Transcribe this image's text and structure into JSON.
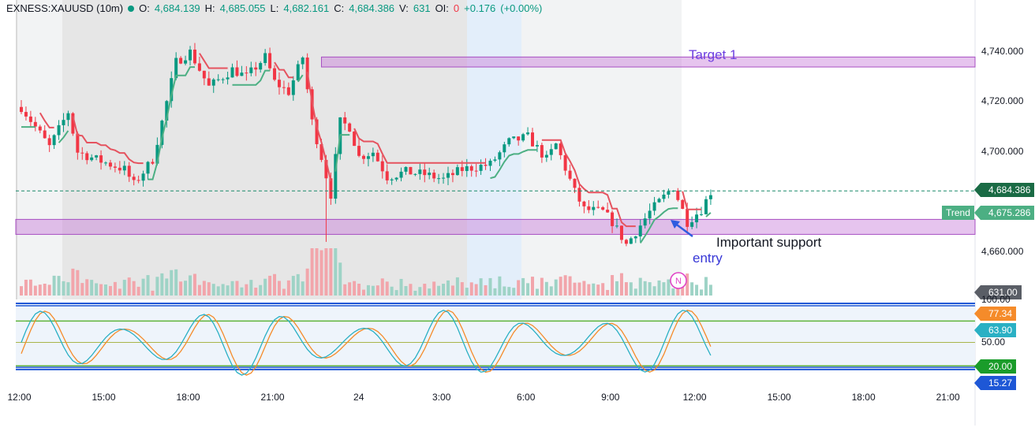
{
  "header": {
    "symbol": "EXNESS:XAUUSD (10m)",
    "o_label": "O:",
    "o": "4,684.139",
    "h_label": "H:",
    "h": "4,685.055",
    "l_label": "L:",
    "l": "4,682.161",
    "c_label": "C:",
    "c": "4,684.386",
    "v_label": "V:",
    "v": "631",
    "oi_label": "OI:",
    "oi": "0",
    "change": "+0.176",
    "change_pct": "(+0.00%)"
  },
  "colors": {
    "up": "#089981",
    "down": "#f23645",
    "zone": "#c77dd9",
    "trend_up": "#4caf83",
    "trend_down": "#e5535f",
    "stoch_k": "#2ab0c4",
    "stoch_d": "#f58b2a",
    "band": "#1e57d6"
  },
  "annotations": {
    "target": "Target 1",
    "support": "Important support",
    "entry": "entry",
    "news": "N"
  },
  "chart_data": [
    {
      "type": "candlestick",
      "title": "",
      "x_ticks": [
        "12:00",
        "15:00",
        "18:00",
        "21:00",
        "24",
        "3:00",
        "6:00",
        "9:00",
        "12:00",
        "15:00",
        "18:00",
        "21:00"
      ],
      "y_ticks": [
        "4,740.000",
        "4,720.000",
        "4,700.000",
        "4,680.000",
        "4,660.000"
      ],
      "ylim": [
        4651,
        4760
      ],
      "anchors": [
        {
          "t": "12:00",
          "v": 4718
        },
        {
          "t": "12:30",
          "v": 4710
        },
        {
          "t": "13:00",
          "v": 4702
        },
        {
          "t": "13:40",
          "v": 4716
        },
        {
          "t": "14:00",
          "v": 4700
        },
        {
          "t": "14:40",
          "v": 4697
        },
        {
          "t": "15:40",
          "v": 4693
        },
        {
          "t": "16:00",
          "v": 4687
        },
        {
          "t": "16:40",
          "v": 4697
        },
        {
          "t": "17:00",
          "v": 4712
        },
        {
          "t": "17:30",
          "v": 4736
        },
        {
          "t": "18:00",
          "v": 4740
        },
        {
          "t": "18:40",
          "v": 4726
        },
        {
          "t": "19:30",
          "v": 4733
        },
        {
          "t": "20:00",
          "v": 4730
        },
        {
          "t": "20:40",
          "v": 4738
        },
        {
          "t": "21:00",
          "v": 4728
        },
        {
          "t": "21:30",
          "v": 4724
        },
        {
          "t": "22:00",
          "v": 4738
        },
        {
          "t": "22:20",
          "v": 4712
        },
        {
          "t": "22:40",
          "v": 4698
        },
        {
          "t": "23:00",
          "v": 4683
        },
        {
          "t": "23:20",
          "v": 4712
        },
        {
          "t": "23:40",
          "v": 4710
        },
        {
          "t": "24:00",
          "v": 4698
        },
        {
          "t": "24:30",
          "v": 4700
        },
        {
          "t": "25:00",
          "v": 4690
        },
        {
          "t": "25:40",
          "v": 4692
        },
        {
          "t": "26:20",
          "v": 4691
        },
        {
          "t": "27:00",
          "v": 4689
        },
        {
          "t": "27:40",
          "v": 4693
        },
        {
          "t": "28:40",
          "v": 4695
        },
        {
          "t": "29:20",
          "v": 4704
        },
        {
          "t": "30:00",
          "v": 4706
        },
        {
          "t": "30:40",
          "v": 4697
        },
        {
          "t": "31:00",
          "v": 4703
        },
        {
          "t": "31:40",
          "v": 4684
        },
        {
          "t": "32:00",
          "v": 4677
        },
        {
          "t": "32:40",
          "v": 4676
        },
        {
          "t": "33:00",
          "v": 4672
        },
        {
          "t": "33:30",
          "v": 4663
        },
        {
          "t": "33:50",
          "v": 4668
        },
        {
          "t": "34:20",
          "v": 4676
        },
        {
          "t": "34:40",
          "v": 4680
        },
        {
          "t": "35:10",
          "v": 4686
        },
        {
          "t": "35:40",
          "v": 4672
        },
        {
          "t": "36:10",
          "v": 4677
        },
        {
          "t": "36:30",
          "v": 4684
        }
      ],
      "last_price": "4,684.386",
      "trend_label": "Trend",
      "trend_value": "4,675.286",
      "zones": [
        {
          "name": "Target 1",
          "low": 4734,
          "high": 4738,
          "from": "22:40"
        },
        {
          "name": "Important support",
          "low": 4667,
          "high": 4673,
          "from": "12:00"
        }
      ],
      "volume_label": "631.00"
    },
    {
      "type": "line",
      "title": "",
      "ylim": [
        0,
        100
      ],
      "levels": [
        "100.00",
        "50.00",
        "20.00",
        "15.27"
      ],
      "values": [
        "77.34",
        "63.90"
      ],
      "series": [
        {
          "key": "k",
          "last": 63.9
        },
        {
          "key": "d",
          "last": 77.34
        }
      ]
    }
  ]
}
